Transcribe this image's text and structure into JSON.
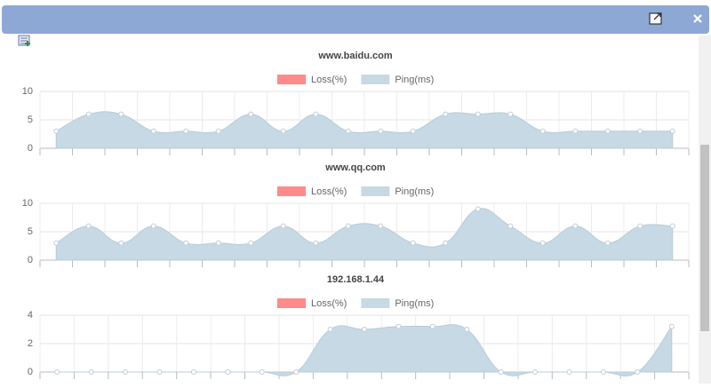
{
  "chart_data": [
    {
      "type": "area",
      "title": "www.baidu.com",
      "categories": [
        null,
        null,
        null,
        null,
        null,
        null,
        null,
        null,
        null,
        null,
        null,
        null,
        null,
        null,
        null,
        null,
        null,
        null,
        null,
        null
      ],
      "series": [
        {
          "name": "Loss(%)",
          "color": "#ff8a8a",
          "values": [
            null,
            null,
            null,
            null,
            null,
            null,
            null,
            null,
            null,
            null,
            null,
            null,
            null,
            null,
            null,
            null,
            null,
            null,
            null,
            null
          ]
        },
        {
          "name": "Ping(ms)",
          "color": "#c6d9e4",
          "values": [
            3,
            6,
            6,
            3,
            3,
            3,
            6,
            3,
            6,
            3,
            3,
            3,
            6,
            6,
            6,
            3,
            3,
            3,
            3,
            3
          ]
        }
      ],
      "ylim": [
        0,
        10
      ],
      "yticks": [
        0,
        5,
        10
      ],
      "grid": true
    },
    {
      "type": "area",
      "title": "www.qq.com",
      "categories": [
        null,
        null,
        null,
        null,
        null,
        null,
        null,
        null,
        null,
        null,
        null,
        null,
        null,
        null,
        null,
        null,
        null,
        null,
        null,
        null
      ],
      "series": [
        {
          "name": "Loss(%)",
          "color": "#ff8a8a",
          "values": [
            null,
            null,
            null,
            null,
            null,
            null,
            null,
            null,
            null,
            null,
            null,
            null,
            null,
            null,
            null,
            null,
            null,
            null,
            null,
            null
          ]
        },
        {
          "name": "Ping(ms)",
          "color": "#c6d9e4",
          "values": [
            3,
            6,
            3,
            6,
            3,
            3,
            3,
            6,
            3,
            6,
            6,
            3,
            3,
            9,
            6,
            3,
            6,
            3,
            6,
            6
          ]
        }
      ],
      "ylim": [
        0,
        10
      ],
      "yticks": [
        0,
        5,
        10
      ],
      "grid": true
    },
    {
      "type": "area",
      "title": "192.168.1.44",
      "categories": [
        null,
        null,
        null,
        null,
        null,
        null,
        null,
        null,
        null,
        null,
        null,
        null,
        null,
        null,
        null,
        null,
        null,
        null,
        null
      ],
      "series": [
        {
          "name": "Loss(%)",
          "color": "#ff8a8a",
          "values": [
            null,
            null,
            null,
            null,
            null,
            null,
            null,
            null,
            null,
            null,
            null,
            null,
            null,
            null,
            null,
            null,
            null,
            null,
            null
          ]
        },
        {
          "name": "Ping(ms)",
          "color": "#c6d9e4",
          "values": [
            0,
            0,
            0,
            0,
            0,
            0,
            0,
            0,
            3,
            3,
            3.2,
            3.2,
            3,
            0,
            0,
            0,
            0,
            0,
            3.2
          ]
        }
      ],
      "ylim": [
        0,
        4
      ],
      "yticks": [
        0,
        2,
        4
      ],
      "grid": true
    }
  ]
}
